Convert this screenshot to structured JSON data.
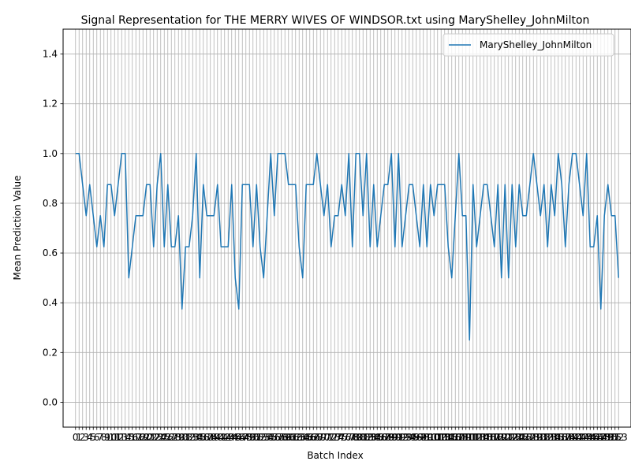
{
  "chart_data": {
    "type": "line",
    "title": "Signal Representation for THE MERRY WIVES OF WINDSOR.txt using MaryShelley_JohnMilton",
    "xlabel": "Batch Index",
    "ylabel": "Mean Prediction Value",
    "ylim": [
      -0.1,
      1.5
    ],
    "xlim": [
      -3.5,
      156.5
    ],
    "yticks": [
      0.0,
      0.2,
      0.4,
      0.6,
      0.8,
      1.0,
      1.2,
      1.4
    ],
    "ytick_labels": [
      "0.0",
      "0.2",
      "0.4",
      "0.6",
      "0.8",
      "1.0",
      "1.2",
      "1.4"
    ],
    "grid": true,
    "legend_position": "top-right",
    "series": [
      {
        "name": "MaryShelley_JohnMilton",
        "color": "#1f77b4",
        "x": [
          0,
          1,
          2,
          3,
          4,
          5,
          6,
          7,
          8,
          9,
          10,
          11,
          12,
          13,
          14,
          15,
          16,
          17,
          18,
          19,
          20,
          21,
          22,
          23,
          24,
          25,
          26,
          27,
          28,
          29,
          30,
          31,
          32,
          33,
          34,
          35,
          36,
          37,
          38,
          39,
          40,
          41,
          42,
          43,
          44,
          45,
          46,
          47,
          48,
          49,
          50,
          51,
          52,
          53,
          54,
          55,
          56,
          57,
          58,
          59,
          60,
          61,
          62,
          63,
          64,
          65,
          66,
          67,
          68,
          69,
          70,
          71,
          72,
          73,
          74,
          75,
          76,
          77,
          78,
          79,
          80,
          81,
          82,
          83,
          84,
          85,
          86,
          87,
          88,
          89,
          90,
          91,
          92,
          93,
          94,
          95,
          96,
          97,
          98,
          99,
          100,
          101,
          102,
          103,
          104,
          105,
          106,
          107,
          108,
          109,
          110,
          111,
          112,
          113,
          114,
          115,
          116,
          117,
          118,
          119,
          120,
          121,
          122,
          123,
          124,
          125,
          126,
          127,
          128,
          129,
          130,
          131,
          132,
          133,
          134,
          135,
          136,
          137,
          138,
          139,
          140,
          141,
          142,
          143,
          144,
          145,
          146,
          147,
          148,
          149,
          150,
          151,
          152,
          153
        ],
        "values": [
          1.0,
          1.0,
          0.875,
          0.75,
          0.875,
          0.75,
          0.625,
          0.75,
          0.625,
          0.875,
          0.875,
          0.75,
          0.875,
          1.0,
          1.0,
          0.5,
          0.625,
          0.75,
          0.75,
          0.75,
          0.875,
          0.875,
          0.625,
          0.875,
          1.0,
          0.625,
          0.875,
          0.625,
          0.625,
          0.75,
          0.375,
          0.625,
          0.625,
          0.75,
          1.0,
          0.5,
          0.875,
          0.75,
          0.75,
          0.75,
          0.875,
          0.625,
          0.625,
          0.625,
          0.875,
          0.5,
          0.375,
          0.875,
          0.875,
          0.875,
          0.625,
          0.875,
          0.625,
          0.5,
          0.75,
          1.0,
          0.75,
          1.0,
          1.0,
          1.0,
          0.875,
          0.875,
          0.875,
          0.625,
          0.5,
          0.875,
          0.875,
          0.875,
          1.0,
          0.875,
          0.75,
          0.875,
          0.625,
          0.75,
          0.75,
          0.875,
          0.75,
          1.0,
          0.625,
          1.0,
          1.0,
          0.75,
          1.0,
          0.625,
          0.875,
          0.625,
          0.75,
          0.875,
          0.875,
          1.0,
          0.625,
          1.0,
          0.625,
          0.75,
          0.875,
          0.875,
          0.75,
          0.625,
          0.875,
          0.625,
          0.875,
          0.75,
          0.875,
          0.875,
          0.875,
          0.625,
          0.5,
          0.75,
          1.0,
          0.75,
          0.75,
          0.25,
          0.875,
          0.625,
          0.75,
          0.875,
          0.875,
          0.75,
          0.625,
          0.875,
          0.5,
          0.875,
          0.5,
          0.875,
          0.625,
          0.875,
          0.75,
          0.75,
          0.875,
          1.0,
          0.875,
          0.75,
          0.875,
          0.625,
          0.875,
          0.75,
          1.0,
          0.875,
          0.625,
          0.875,
          1.0,
          1.0,
          0.875,
          0.75,
          1.0,
          0.625,
          0.625,
          0.75,
          0.375,
          0.75,
          0.875,
          0.75,
          0.75,
          0.5
        ]
      }
    ]
  }
}
